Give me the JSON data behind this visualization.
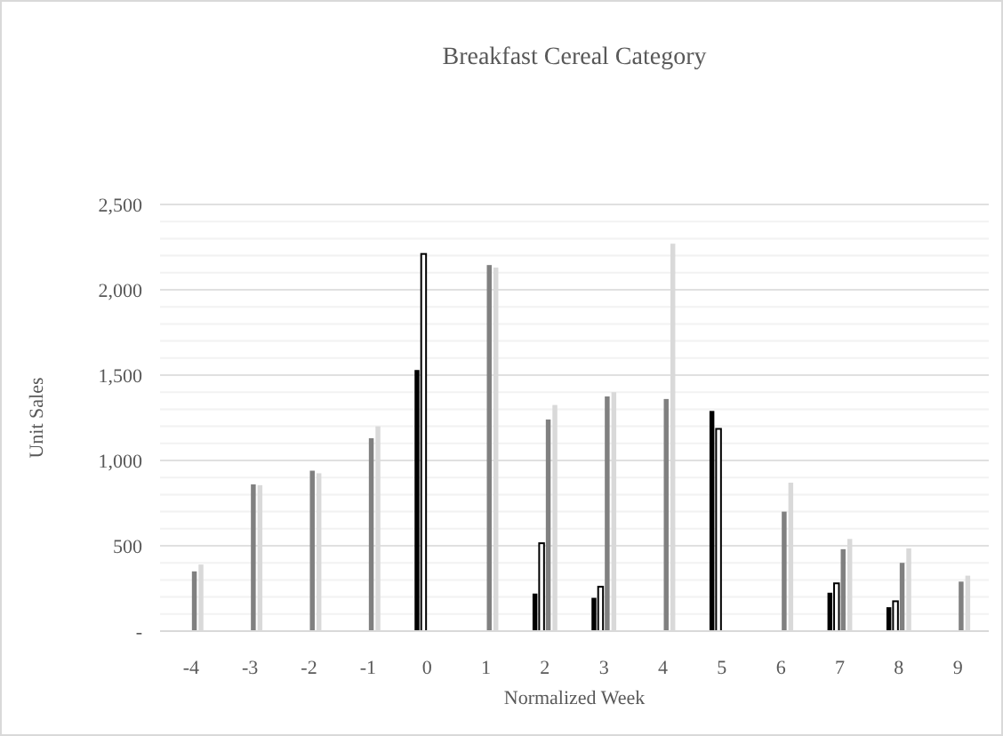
{
  "chart_data": {
    "type": "bar",
    "title": "Breakfast Cereal Category",
    "xlabel": "Normalized Week",
    "ylabel": "Unit Sales",
    "categories": [
      "-4",
      "-3",
      "-2",
      "-1",
      "0",
      "1",
      "2",
      "3",
      "4",
      "5",
      "6",
      "7",
      "8",
      "9"
    ],
    "series": [
      {
        "color": "#000000",
        "values": [
          null,
          null,
          null,
          null,
          1530,
          null,
          220,
          195,
          null,
          1290,
          null,
          225,
          140,
          null
        ]
      },
      {
        "color": "#ffffff",
        "values": [
          null,
          null,
          null,
          null,
          2210,
          null,
          515,
          260,
          null,
          1185,
          null,
          280,
          175,
          null
        ]
      },
      {
        "color": "#808080",
        "values": [
          350,
          860,
          940,
          1130,
          null,
          2145,
          1240,
          1375,
          1360,
          null,
          700,
          480,
          400,
          290
        ]
      },
      {
        "color": "#d9d9d9",
        "values": [
          390,
          855,
          925,
          1200,
          null,
          2130,
          1325,
          1400,
          2270,
          null,
          870,
          540,
          485,
          325
        ]
      }
    ],
    "ylim": [
      0,
      2500
    ],
    "yticks": [
      {
        "value": 0,
        "label": "-"
      },
      {
        "value": 100,
        "label": null
      },
      {
        "value": 200,
        "label": null
      },
      {
        "value": 300,
        "label": null
      },
      {
        "value": 400,
        "label": null
      },
      {
        "value": 500,
        "label": "500"
      },
      {
        "value": 600,
        "label": null
      },
      {
        "value": 700,
        "label": null
      },
      {
        "value": 800,
        "label": null
      },
      {
        "value": 900,
        "label": null
      },
      {
        "value": 1000,
        "label": "1,000"
      },
      {
        "value": 1100,
        "label": null
      },
      {
        "value": 1200,
        "label": null
      },
      {
        "value": 1300,
        "label": null
      },
      {
        "value": 1400,
        "label": null
      },
      {
        "value": 1500,
        "label": "1,500"
      },
      {
        "value": 1600,
        "label": null
      },
      {
        "value": 1700,
        "label": null
      },
      {
        "value": 1800,
        "label": null
      },
      {
        "value": 1900,
        "label": null
      },
      {
        "value": 2000,
        "label": "2,000"
      },
      {
        "value": 2100,
        "label": null
      },
      {
        "value": 2200,
        "label": null
      },
      {
        "value": 2300,
        "label": null
      },
      {
        "value": 2400,
        "label": null
      },
      {
        "value": 2500,
        "label": "2,500"
      }
    ],
    "grid": "y"
  }
}
